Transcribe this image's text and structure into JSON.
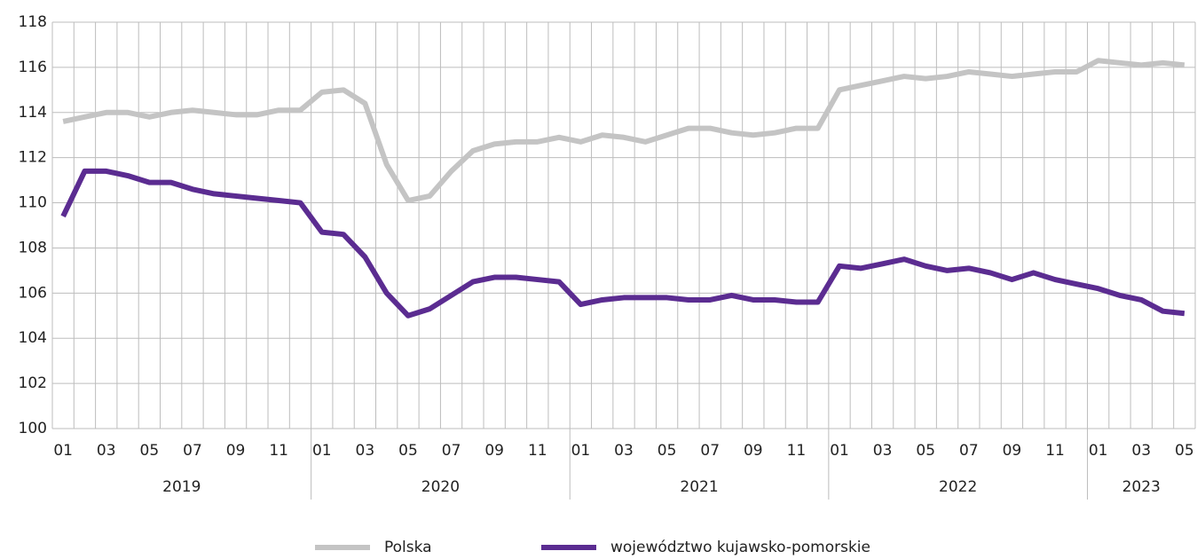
{
  "chart_data": {
    "type": "line",
    "categories": [
      "01",
      null,
      "03",
      null,
      "05",
      null,
      "07",
      null,
      "09",
      null,
      "11",
      null,
      "01",
      null,
      "03",
      null,
      "05",
      null,
      "07",
      null,
      "09",
      null,
      "11",
      null,
      "01",
      null,
      "03",
      null,
      "05",
      null,
      "07",
      null,
      "09",
      null,
      "11",
      null,
      "01",
      null,
      "03",
      null,
      "05",
      null,
      "07",
      null,
      "09",
      null,
      "11",
      null,
      "01",
      null,
      "03",
      null,
      "05"
    ],
    "years": [
      "2019",
      "2020",
      "2021",
      "2022",
      "2023"
    ],
    "series": [
      {
        "name": "Polska",
        "color": "#c4c4c4",
        "values": [
          113.6,
          113.8,
          114.0,
          114.0,
          113.8,
          114.0,
          114.1,
          114.0,
          113.9,
          113.9,
          114.1,
          114.1,
          114.9,
          115.0,
          114.4,
          111.7,
          110.1,
          110.3,
          111.4,
          112.3,
          112.6,
          112.7,
          112.7,
          112.9,
          112.7,
          113.0,
          112.9,
          112.7,
          113.0,
          113.3,
          113.3,
          113.1,
          113.0,
          113.1,
          113.3,
          113.3,
          115.0,
          115.2,
          115.4,
          115.6,
          115.5,
          115.6,
          115.8,
          115.7,
          115.6,
          115.7,
          115.8,
          115.8,
          116.3,
          116.2,
          116.1,
          116.2,
          116.1
        ]
      },
      {
        "name": "województwo kujawsko-pomorskie",
        "color": "#5b2c91",
        "values": [
          109.4,
          111.4,
          111.4,
          111.2,
          110.9,
          110.9,
          110.6,
          110.4,
          110.3,
          110.2,
          110.1,
          110.0,
          108.7,
          108.6,
          107.6,
          106.0,
          105.0,
          105.3,
          105.9,
          106.5,
          106.7,
          106.7,
          106.6,
          106.5,
          105.5,
          105.7,
          105.8,
          105.8,
          105.8,
          105.7,
          105.7,
          105.9,
          105.7,
          105.7,
          105.6,
          105.6,
          107.2,
          107.1,
          107.3,
          107.5,
          107.2,
          107.0,
          107.1,
          106.9,
          106.6,
          106.9,
          106.6,
          106.4,
          106.2,
          105.9,
          105.7,
          105.2,
          105.1
        ]
      }
    ],
    "ylim": [
      100,
      118
    ],
    "yticks": [
      100,
      102,
      104,
      106,
      108,
      110,
      112,
      114,
      116,
      118
    ],
    "grid": true
  }
}
